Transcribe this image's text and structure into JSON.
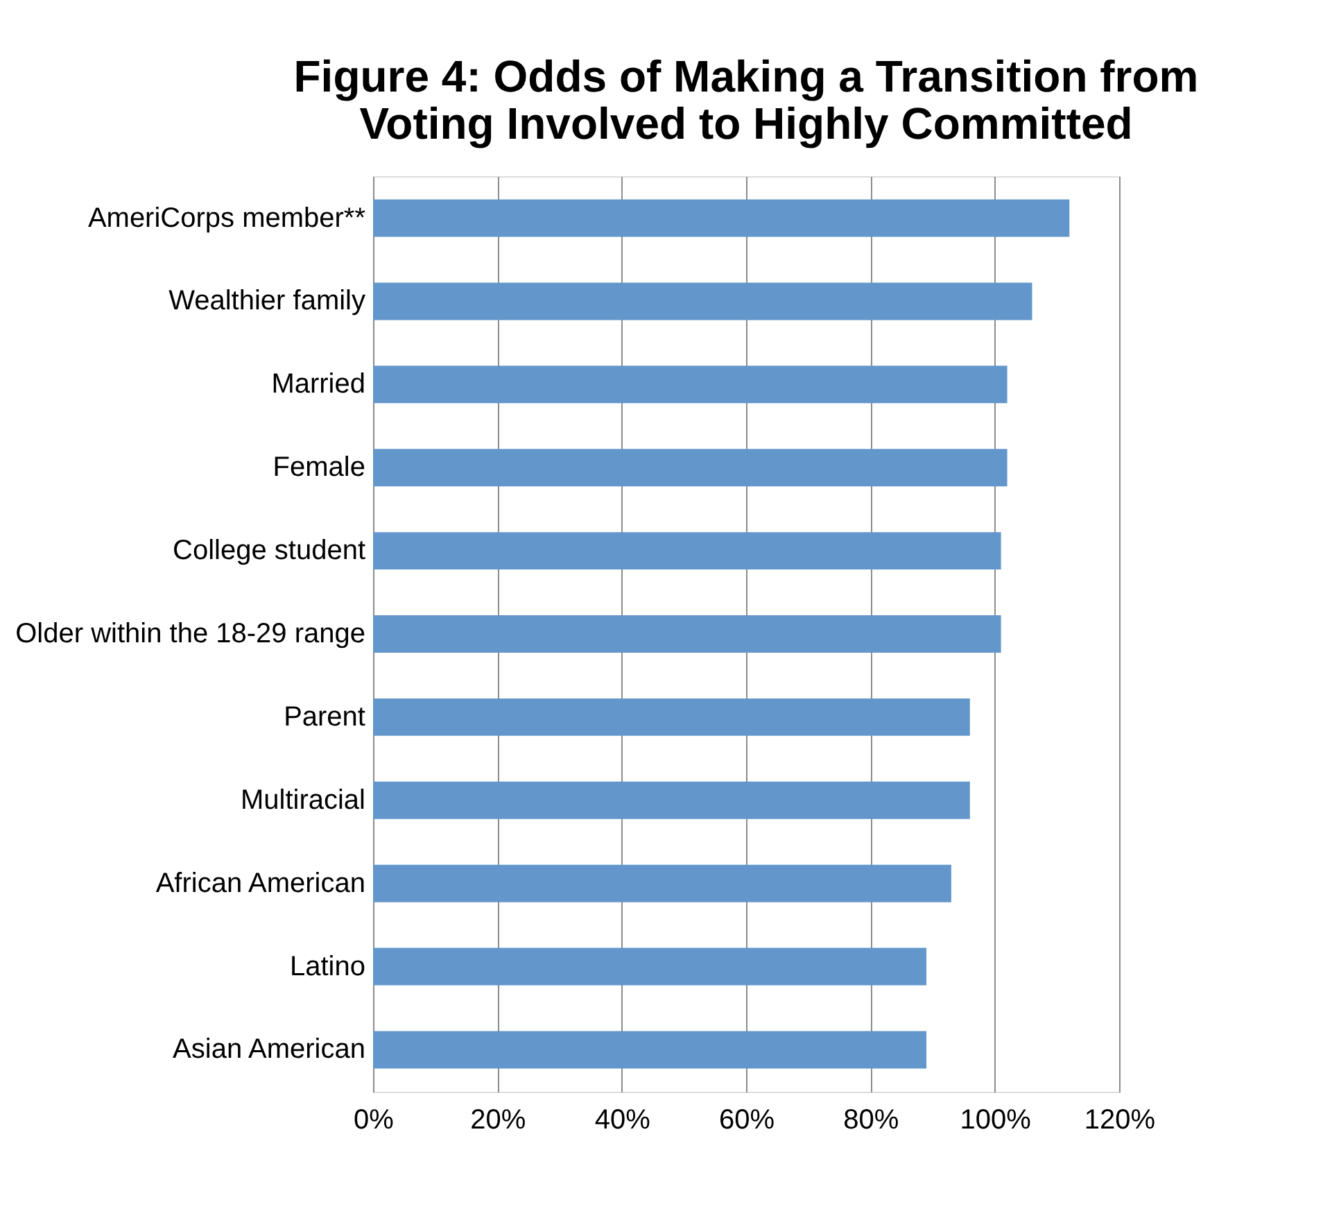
{
  "chart_data": {
    "type": "bar",
    "orientation": "horizontal",
    "title": "Figure 4: Odds of Making a Transition from\nVoting Involved to Highly Committed",
    "categories": [
      "AmeriCorps member**",
      "Wealthier family",
      "Married",
      "Female",
      "College student",
      "Older within the 18-29 range",
      "Parent",
      "Multiracial",
      "African American",
      "Latino",
      "Asian American"
    ],
    "values": [
      112,
      106,
      102,
      102,
      101,
      101,
      96,
      96,
      93,
      89,
      89
    ],
    "color": "#6397cb",
    "xlim": [
      0,
      120
    ],
    "xticks": [
      {
        "value": 0,
        "label": "0%"
      },
      {
        "value": 20,
        "label": "20%"
      },
      {
        "value": 40,
        "label": "40%"
      },
      {
        "value": 60,
        "label": "60%"
      },
      {
        "value": 80,
        "label": "80%"
      },
      {
        "value": 100,
        "label": "100%"
      },
      {
        "value": 120,
        "label": "120%"
      }
    ],
    "grid": "x"
  }
}
